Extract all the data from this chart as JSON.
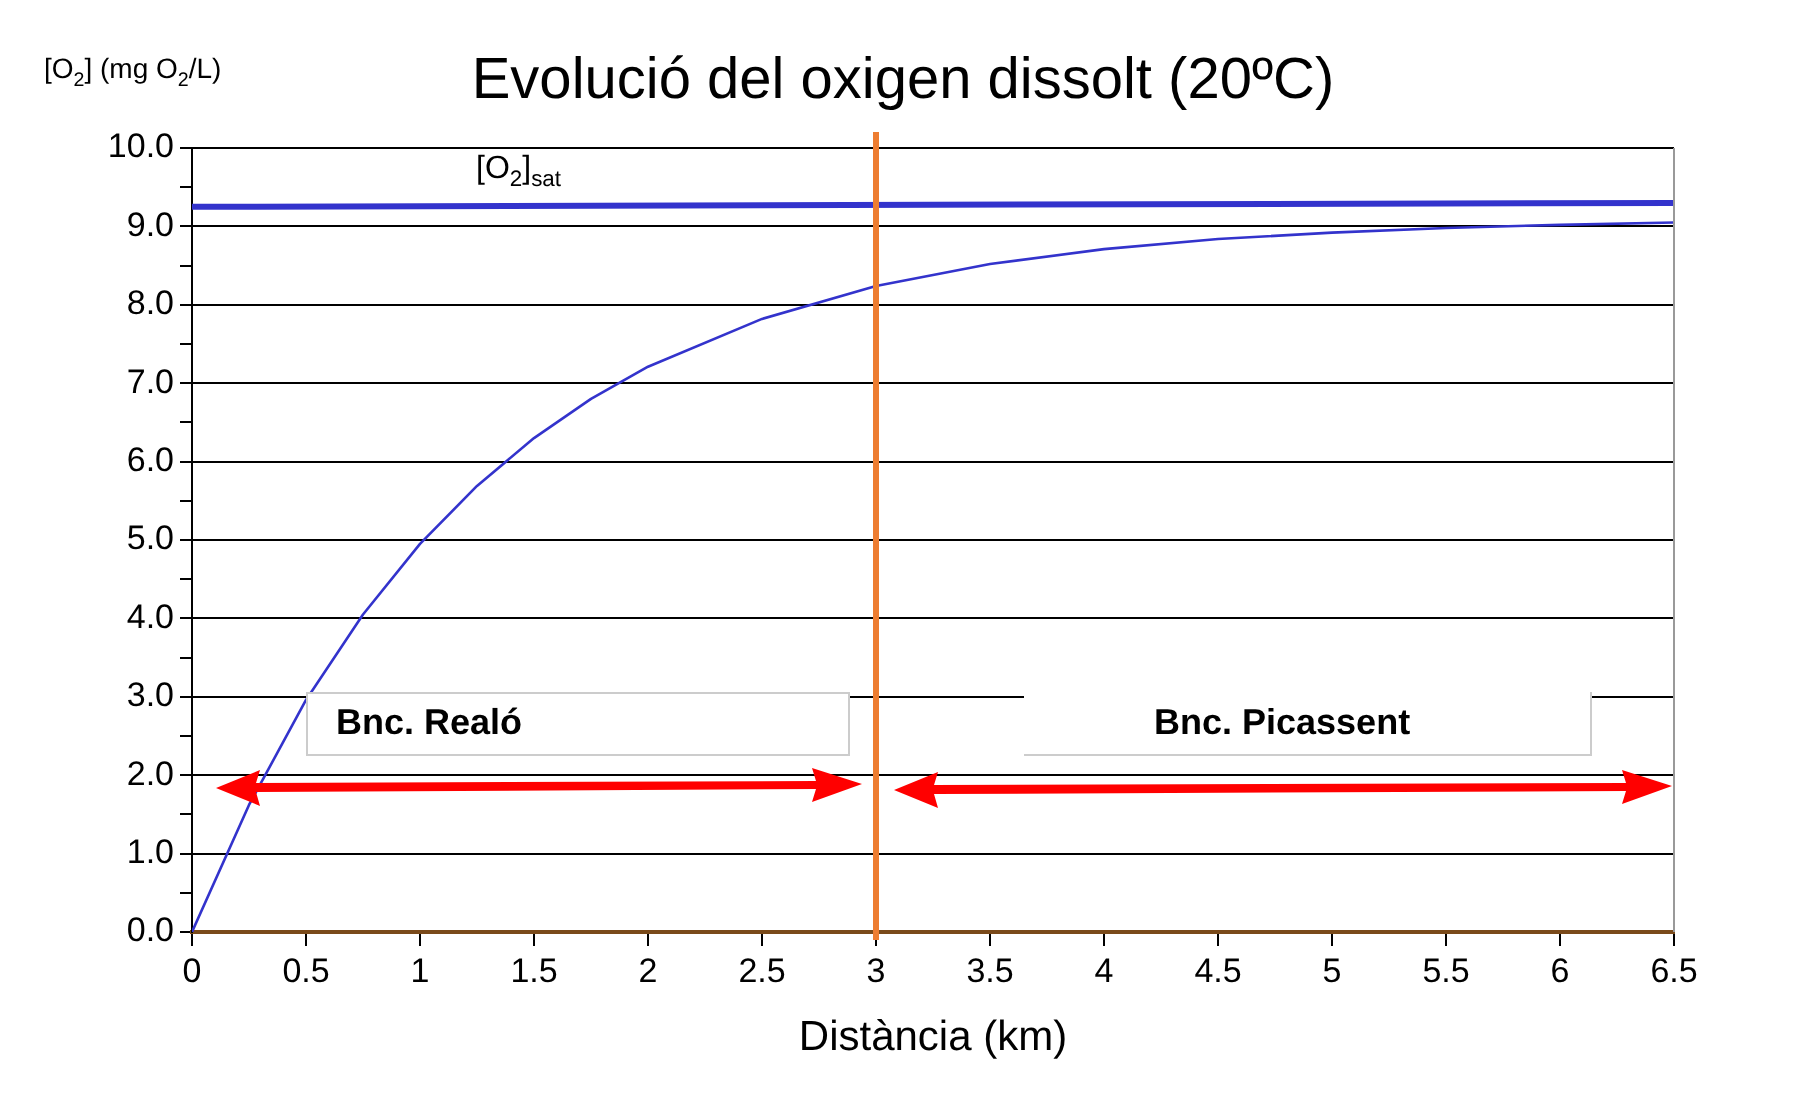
{
  "chart_data": {
    "type": "line",
    "title": "Evolució del oxigen dissolt (20ºC)",
    "xlabel": "Distància (km)",
    "ylabel": "[O$_{2}$] (mg O$_{2}$/L)",
    "annotations": [
      "Bnc. Realó",
      "Bnc. Picassent"
    ],
    "series": [
      {
        "name": "[O$_{2}$]$_{sat}$",
        "color": "#3333cc",
        "x": [
          0,
          6.5
        ],
        "values": [
          9.25,
          9.3
        ]
      },
      {
        "color": "#3333cc",
        "x": [
          0,
          0.25,
          0.5,
          0.75,
          1,
          1.25,
          1.5,
          1.75,
          2,
          2.5,
          3,
          3.5,
          4,
          4.5,
          5,
          5.5,
          6,
          6.5
        ],
        "values": [
          0,
          1.62,
          2.96,
          4.05,
          4.95,
          5.69,
          6.3,
          6.8,
          7.21,
          7.82,
          8.24,
          8.52,
          8.71,
          8.84,
          8.92,
          8.98,
          9.02,
          9.05
        ]
      }
    ],
    "xlim": [
      0,
      6.5
    ],
    "xticks": [
      0,
      0.5,
      1,
      1.5,
      2,
      2.5,
      3,
      3.5,
      4,
      4.5,
      5,
      5.5,
      6,
      6.5
    ],
    "ylim": [
      0,
      10
    ],
    "yticks": [
      {
        "value": 0,
        "label": "0.0"
      },
      {
        "value": 0.5,
        "label": null
      },
      {
        "value": 1,
        "label": "1.0"
      },
      {
        "value": 1.5,
        "label": null
      },
      {
        "value": 2,
        "label": "2.0"
      },
      {
        "value": 2.5,
        "label": null
      },
      {
        "value": 3,
        "label": "3.0"
      },
      {
        "value": 3.5,
        "label": null
      },
      {
        "value": 4,
        "label": "4.0"
      },
      {
        "value": 4.5,
        "label": null
      },
      {
        "value": 5,
        "label": "5.0"
      },
      {
        "value": 5.5,
        "label": null
      },
      {
        "value": 6,
        "label": "6.0"
      },
      {
        "value": 6.5,
        "label": null
      },
      {
        "value": 7,
        "label": "7.0"
      },
      {
        "value": 7.5,
        "label": null
      },
      {
        "value": 8,
        "label": "8.0"
      },
      {
        "value": 8.5,
        "label": null
      },
      {
        "value": 9,
        "label": "9.0"
      },
      {
        "value": 9.5,
        "label": null
      },
      {
        "value": 10,
        "label": "10.0"
      }
    ],
    "ref_lines": [
      {
        "axis": "x",
        "value": 3,
        "color": "#ed7d31"
      }
    ],
    "grid": "y",
    "legend": false,
    "marker": "none",
    "line_style": "solid"
  }
}
